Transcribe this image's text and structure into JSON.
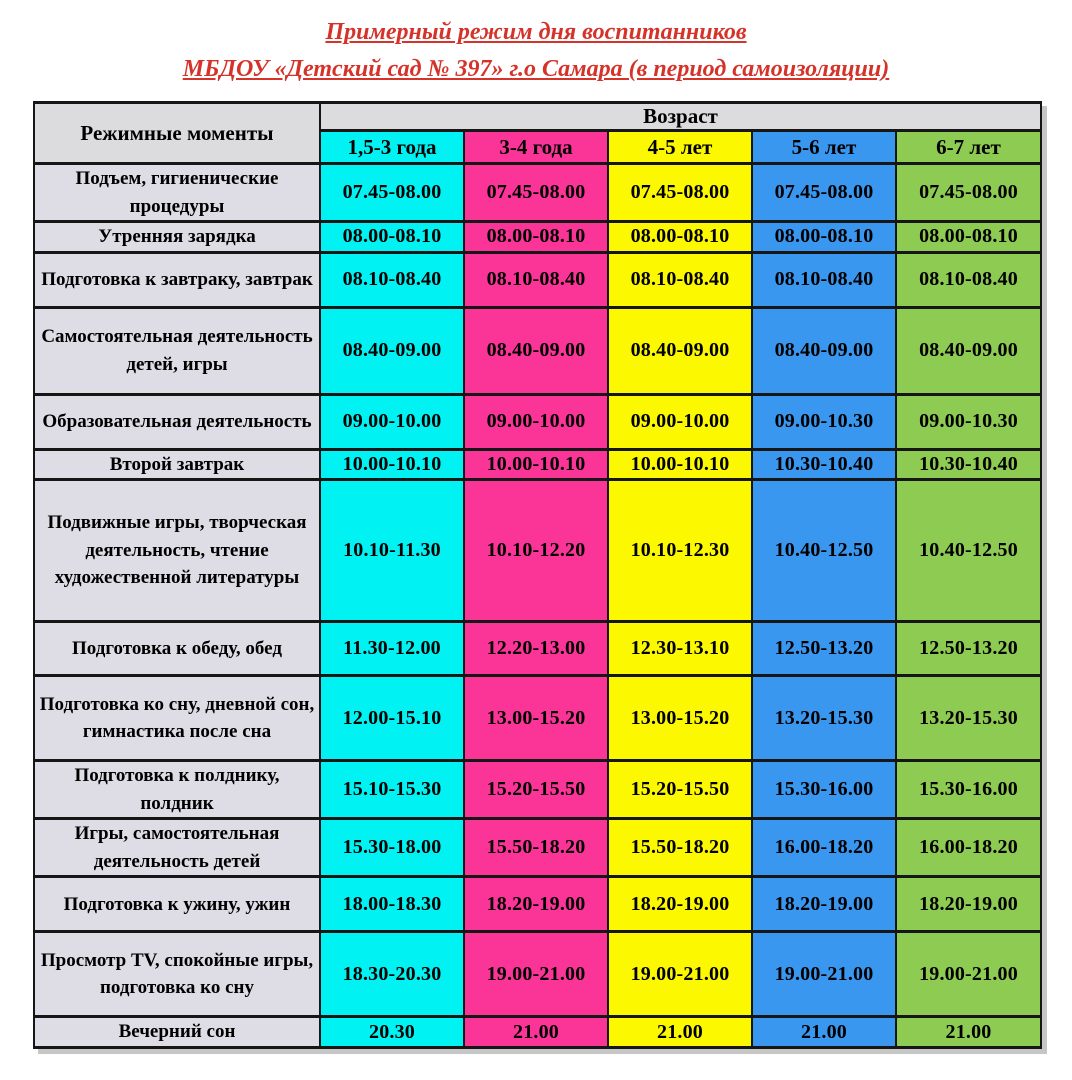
{
  "title": {
    "line1": "Примерный режим дня воспитанников",
    "line2": "МБДОУ «Детский сад № 397» г.о Самара (в период самоизоляции)",
    "color": "#d5332a"
  },
  "table": {
    "corner_header": "Режимные моменты",
    "age_header": "Возраст",
    "columns": [
      {
        "label": "1,5-3 года",
        "color": "#00f2f2"
      },
      {
        "label": "3-4 года",
        "color": "#fb3498"
      },
      {
        "label": "4-5 лет",
        "color": "#fcf800"
      },
      {
        "label": "5-6 лет",
        "color": "#3a97f0"
      },
      {
        "label": "6-7 лет",
        "color": "#8ecb52"
      }
    ],
    "rows": [
      {
        "label": "Подъем, гигиенические процедуры",
        "times": [
          "07.45-08.00",
          "07.45-08.00",
          "07.45-08.00",
          "07.45-08.00",
          "07.45-08.00"
        ]
      },
      {
        "label": "Утренняя зарядка",
        "times": [
          "08.00-08.10",
          "08.00-08.10",
          "08.00-08.10",
          "08.00-08.10",
          "08.00-08.10"
        ]
      },
      {
        "label": "Подготовка к завтраку, завтрак",
        "times": [
          "08.10-08.40",
          "08.10-08.40",
          "08.10-08.40",
          "08.10-08.40",
          "08.10-08.40"
        ]
      },
      {
        "label": "Самостоятельная деятельность детей, игры",
        "times": [
          "08.40-09.00",
          "08.40-09.00",
          "08.40-09.00",
          "08.40-09.00",
          "08.40-09.00"
        ]
      },
      {
        "label": "Образовательная деятельность",
        "times": [
          "09.00-10.00",
          "09.00-10.00",
          "09.00-10.00",
          "09.00-10.30",
          "09.00-10.30"
        ]
      },
      {
        "label": "Второй завтрак",
        "times": [
          "10.00-10.10",
          "10.00-10.10",
          "10.00-10.10",
          "10.30-10.40",
          "10.30-10.40"
        ]
      },
      {
        "label": "Подвижные игры, творческая деятельность, чтение художественной литературы",
        "times": [
          "10.10-11.30",
          "10.10-12.20",
          "10.10-12.30",
          "10.40-12.50",
          "10.40-12.50"
        ]
      },
      {
        "label": "Подготовка к обеду, обед",
        "times": [
          "11.30-12.00",
          "12.20-13.00",
          "12.30-13.10",
          "12.50-13.20",
          "12.50-13.20"
        ]
      },
      {
        "label": "Подготовка ко сну, дневной сон, гимнастика после сна",
        "times": [
          "12.00-15.10",
          "13.00-15.20",
          "13.00-15.20",
          "13.20-15.30",
          "13.20-15.30"
        ]
      },
      {
        "label": "Подготовка к полднику, полдник",
        "times": [
          "15.10-15.30",
          "15.20-15.50",
          "15.20-15.50",
          "15.30-16.00",
          "15.30-16.00"
        ]
      },
      {
        "label": "Игры, самостоятельная деятельность детей",
        "times": [
          "15.30-18.00",
          "15.50-18.20",
          "15.50-18.20",
          "16.00-18.20",
          "16.00-18.20"
        ]
      },
      {
        "label": "Подготовка к ужину, ужин",
        "times": [
          "18.00-18.30",
          "18.20-19.00",
          "18.20-19.00",
          "18.20-19.00",
          "18.20-19.00"
        ]
      },
      {
        "label": "Просмотр TV, спокойные игры, подготовка ко сну",
        "times": [
          "18.30-20.30",
          "19.00-21.00",
          "19.00-21.00",
          "19.00-21.00",
          "19.00-21.00"
        ]
      },
      {
        "label": "Вечерний сон",
        "times": [
          "20.30",
          "21.00",
          "21.00",
          "21.00",
          "21.00"
        ]
      }
    ]
  }
}
